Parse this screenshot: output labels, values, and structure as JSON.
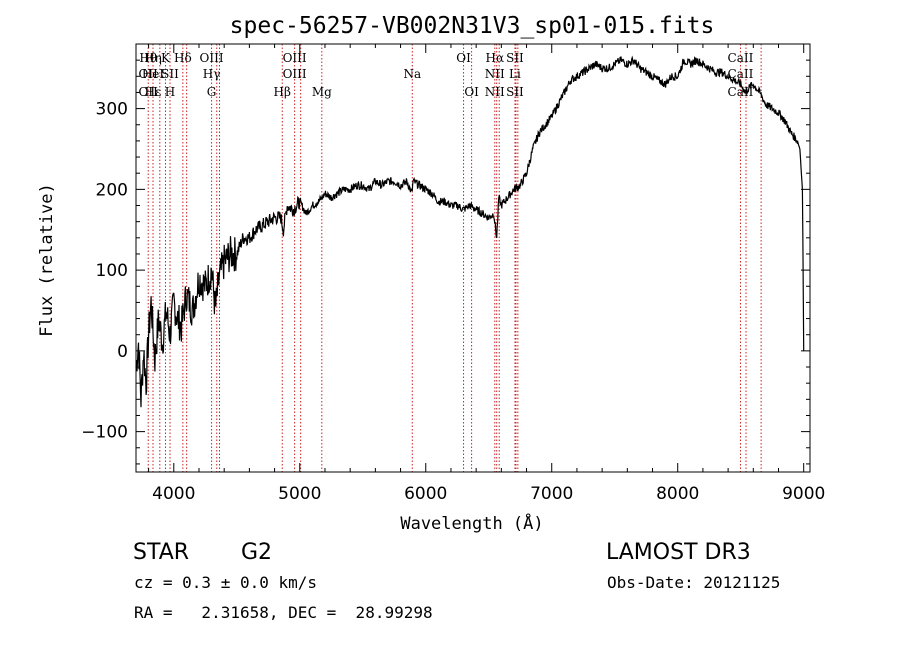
{
  "chart_data": {
    "type": "line",
    "title": "spec-56257-VB002N31V3_sp01-015.fits",
    "xlabel": "Wavelength (Å)",
    "ylabel": "Flux (relative)",
    "xlim": [
      3700,
      9050
    ],
    "ylim": [
      -150,
      380
    ],
    "xticks": [
      4000,
      5000,
      6000,
      7000,
      8000,
      9000
    ],
    "yticks": [
      -100,
      0,
      100,
      200,
      300
    ],
    "series": [
      {
        "name": "flux",
        "x": [
          3700,
          3720,
          3740,
          3760,
          3780,
          3800,
          3820,
          3850,
          3880,
          3910,
          3940,
          3970,
          4000,
          4030,
          4060,
          4100,
          4150,
          4200,
          4250,
          4300,
          4330,
          4360,
          4400,
          4450,
          4500,
          4550,
          4600,
          4650,
          4700,
          4750,
          4800,
          4850,
          4870,
          4900,
          4950,
          5000,
          5050,
          5100,
          5150,
          5180,
          5200,
          5250,
          5300,
          5350,
          5400,
          5450,
          5500,
          5550,
          5600,
          5650,
          5700,
          5750,
          5800,
          5850,
          5890,
          5900,
          5950,
          6000,
          6050,
          6100,
          6150,
          6200,
          6250,
          6300,
          6350,
          6400,
          6450,
          6500,
          6540,
          6563,
          6580,
          6600,
          6650,
          6700,
          6750,
          6800,
          6850,
          6900,
          6950,
          7000,
          7050,
          7100,
          7150,
          7200,
          7250,
          7300,
          7350,
          7400,
          7450,
          7500,
          7550,
          7600,
          7650,
          7700,
          7750,
          7800,
          7850,
          7900,
          7950,
          8000,
          8050,
          8100,
          8150,
          8200,
          8250,
          8300,
          8350,
          8400,
          8450,
          8500,
          8540,
          8560,
          8600,
          8650,
          8700,
          8750,
          8800,
          8850,
          8900,
          8950,
          8970,
          8990,
          9000
        ],
        "values": [
          -20,
          10,
          -60,
          0,
          -40,
          20,
          60,
          -10,
          40,
          10,
          50,
          20,
          60,
          40,
          30,
          70,
          50,
          90,
          80,
          100,
          50,
          90,
          110,
          120,
          120,
          140,
          140,
          150,
          155,
          160,
          165,
          165,
          150,
          180,
          175,
          185,
          170,
          180,
          185,
          190,
          195,
          190,
          195,
          200,
          200,
          205,
          205,
          200,
          210,
          205,
          210,
          210,
          205,
          210,
          195,
          210,
          205,
          200,
          195,
          185,
          185,
          180,
          180,
          175,
          180,
          175,
          170,
          165,
          170,
          140,
          190,
          180,
          190,
          200,
          205,
          220,
          250,
          270,
          280,
          290,
          305,
          320,
          335,
          340,
          345,
          350,
          355,
          350,
          350,
          355,
          360,
          355,
          360,
          350,
          345,
          340,
          335,
          330,
          340,
          340,
          360,
          355,
          360,
          355,
          350,
          345,
          345,
          340,
          335,
          330,
          320,
          325,
          330,
          320,
          305,
          300,
          295,
          285,
          270,
          260,
          250,
          200,
          0
        ]
      }
    ],
    "lines": [
      {
        "wl": 3797,
        "top": "Hθ",
        "mid": "OII",
        "low": "OII"
      },
      {
        "wl": 3835,
        "top": "Hη",
        "mid": "HeI",
        "low": "Hε"
      },
      {
        "wl": 3889,
        "top": "",
        "mid": "",
        "low": ""
      },
      {
        "wl": 3934,
        "top": "K",
        "mid": "",
        "low": ""
      },
      {
        "wl": 3970,
        "top": "",
        "mid": "SII",
        "low": "H"
      },
      {
        "wl": 4072,
        "top": "Hδ",
        "mid": "",
        "low": ""
      },
      {
        "wl": 4102,
        "top": "",
        "mid": "",
        "low": ""
      },
      {
        "wl": 4300,
        "top": "OIII",
        "mid": "Hγ",
        "low": "G"
      },
      {
        "wl": 4341,
        "top": "",
        "mid": "",
        "low": ""
      },
      {
        "wl": 4363,
        "top": "",
        "mid": "",
        "low": ""
      },
      {
        "wl": 4861,
        "top": "",
        "mid": "",
        "low": "Hβ"
      },
      {
        "wl": 4959,
        "top": "OIII",
        "mid": "OIII",
        "low": ""
      },
      {
        "wl": 5007,
        "top": "",
        "mid": "",
        "low": ""
      },
      {
        "wl": 5175,
        "top": "",
        "mid": "",
        "low": "Mg"
      },
      {
        "wl": 5893,
        "top": "",
        "mid": "Na",
        "low": ""
      },
      {
        "wl": 6300,
        "top": "OI",
        "mid": "",
        "low": ""
      },
      {
        "wl": 6364,
        "top": "",
        "mid": "",
        "low": "OI"
      },
      {
        "wl": 6548,
        "top": "Hα",
        "mid": "NII",
        "low": "NII"
      },
      {
        "wl": 6563,
        "top": "",
        "mid": "",
        "low": ""
      },
      {
        "wl": 6583,
        "top": "",
        "mid": "",
        "low": ""
      },
      {
        "wl": 6708,
        "top": "SII",
        "mid": "Li",
        "low": "SII"
      },
      {
        "wl": 6716,
        "top": "",
        "mid": "",
        "low": ""
      },
      {
        "wl": 6731,
        "top": "",
        "mid": "",
        "low": ""
      },
      {
        "wl": 8498,
        "top": "CaII",
        "mid": "CaII",
        "low": "CaII"
      },
      {
        "wl": 8542,
        "top": "",
        "mid": "",
        "low": ""
      },
      {
        "wl": 8662,
        "top": "",
        "mid": "",
        "low": ""
      }
    ]
  },
  "info": {
    "object_type": "STAR",
    "subclass": "G2",
    "survey": "LAMOST DR3",
    "redshift": "cz = 0.3 ± 0.0 km/s",
    "obs_date": "Obs-Date: 20121125",
    "coords": "RA =   2.31658, DEC =  28.99298"
  },
  "colors": {
    "line_marker": "#cc2222",
    "spectrum": "#000000",
    "axis": "#000000"
  }
}
